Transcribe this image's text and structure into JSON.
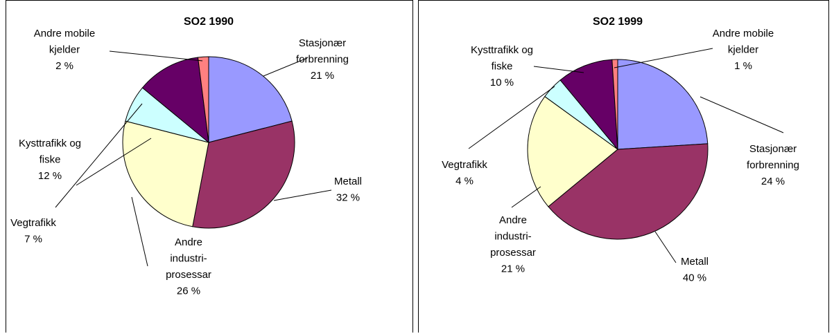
{
  "chart_data": [
    {
      "type": "pie",
      "title": "SO2 1990",
      "categories": [
        "Stasjonær\nforbrenning",
        "Metall",
        "Andre\nindustri-\nprosessar",
        "Vegtrafikk",
        "Kysttrafikk og\nfiske",
        "Andre mobile\nkjelder"
      ],
      "values": [
        21,
        32,
        26,
        7,
        12,
        2
      ],
      "value_labels": [
        "21 %",
        "32 %",
        "26 %",
        "7 %",
        "12 %",
        "2 %"
      ],
      "colors": [
        "#9999ff",
        "#993366",
        "#ffffcc",
        "#ccffff",
        "#660066",
        "#ff8080"
      ]
    },
    {
      "type": "pie",
      "title": "SO2 1999",
      "categories": [
        "Stasjonær\nforbrenning",
        "Metall",
        "Andre\nindustri-\nprosessar",
        "Vegtrafikk",
        "Kysttrafikk og\nfiske",
        "Andre mobile\nkjelder"
      ],
      "values": [
        24,
        40,
        21,
        4,
        10,
        1
      ],
      "value_labels": [
        "24 %",
        "40 %",
        "21 %",
        "4 %",
        "10 %",
        "1 %"
      ],
      "colors": [
        "#9999ff",
        "#993366",
        "#ffffcc",
        "#ccffff",
        "#660066",
        "#ff8080"
      ]
    }
  ]
}
